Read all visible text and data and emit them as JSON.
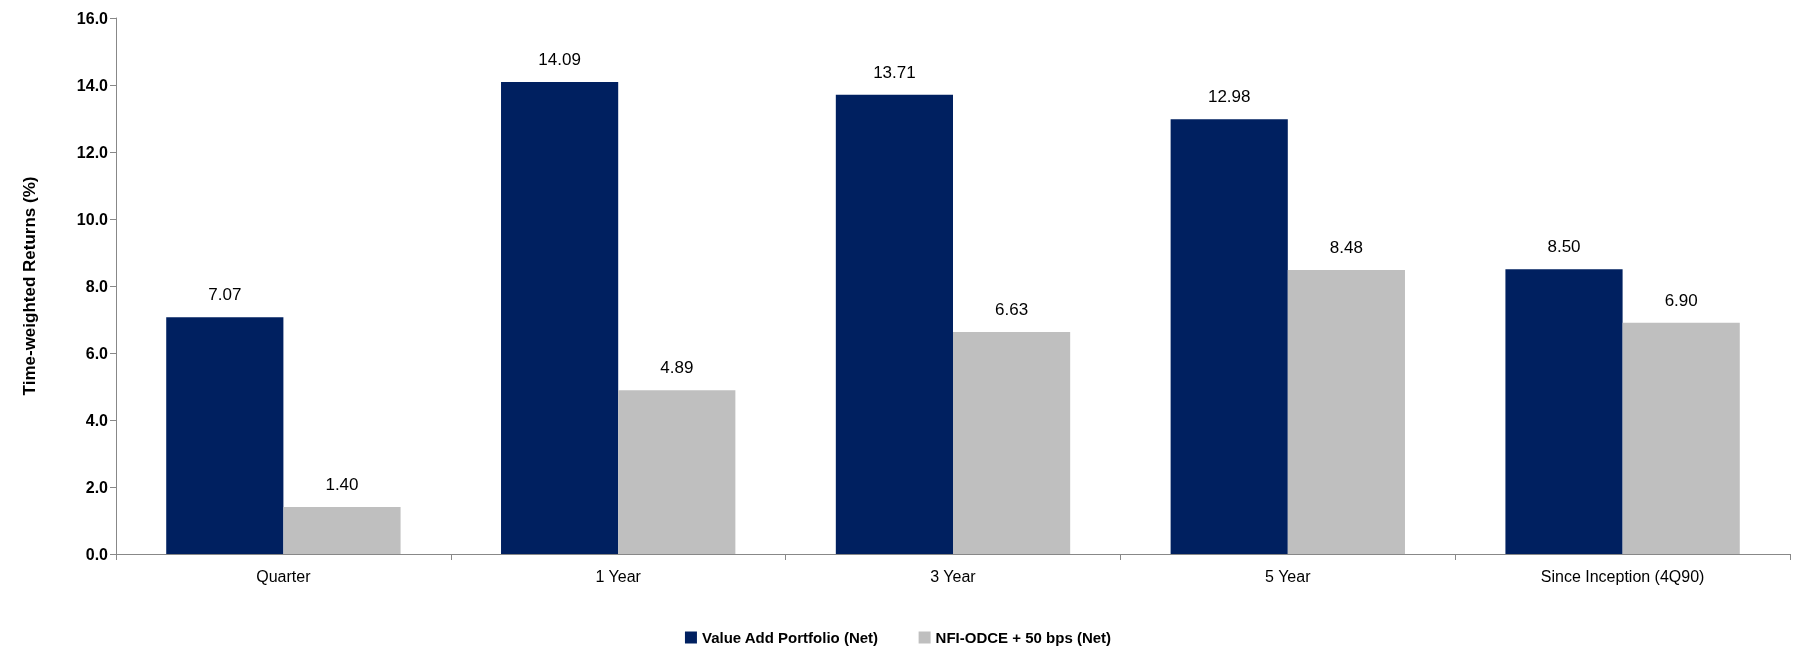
{
  "chart_data": {
    "type": "bar",
    "ylabel": "Time-weighted Returns (%)",
    "categories": [
      "Quarter",
      "1 Year",
      "3 Year",
      "5 Year",
      "Since Inception (4Q90)"
    ],
    "series": [
      {
        "name": "Value Add Portfolio (Net)",
        "color": "#002060",
        "values": [
          7.07,
          14.09,
          13.71,
          12.98,
          8.5
        ]
      },
      {
        "name": "NFI-ODCE + 50 bps (Net)",
        "color": "#bfbfbf",
        "values": [
          1.4,
          4.89,
          6.63,
          8.48,
          6.9
        ]
      }
    ],
    "value_labels": [
      [
        "7.07",
        "14.09",
        "13.71",
        "12.98",
        "8.50"
      ],
      [
        "1.40",
        "4.89",
        "6.63",
        "8.48",
        "6.90"
      ]
    ],
    "ylim": [
      0,
      16
    ],
    "yticks": [
      {
        "value": 0,
        "label": "0.0"
      },
      {
        "value": 2,
        "label": "2.0"
      },
      {
        "value": 4,
        "label": "4.0"
      },
      {
        "value": 6,
        "label": "6.0"
      },
      {
        "value": 8,
        "label": "8.0"
      },
      {
        "value": 10,
        "label": "10.0"
      },
      {
        "value": 12,
        "label": "12.0"
      },
      {
        "value": 14,
        "label": "14.0"
      },
      {
        "value": 16,
        "label": "16.0"
      }
    ],
    "grid": false,
    "legend": "bottom"
  }
}
